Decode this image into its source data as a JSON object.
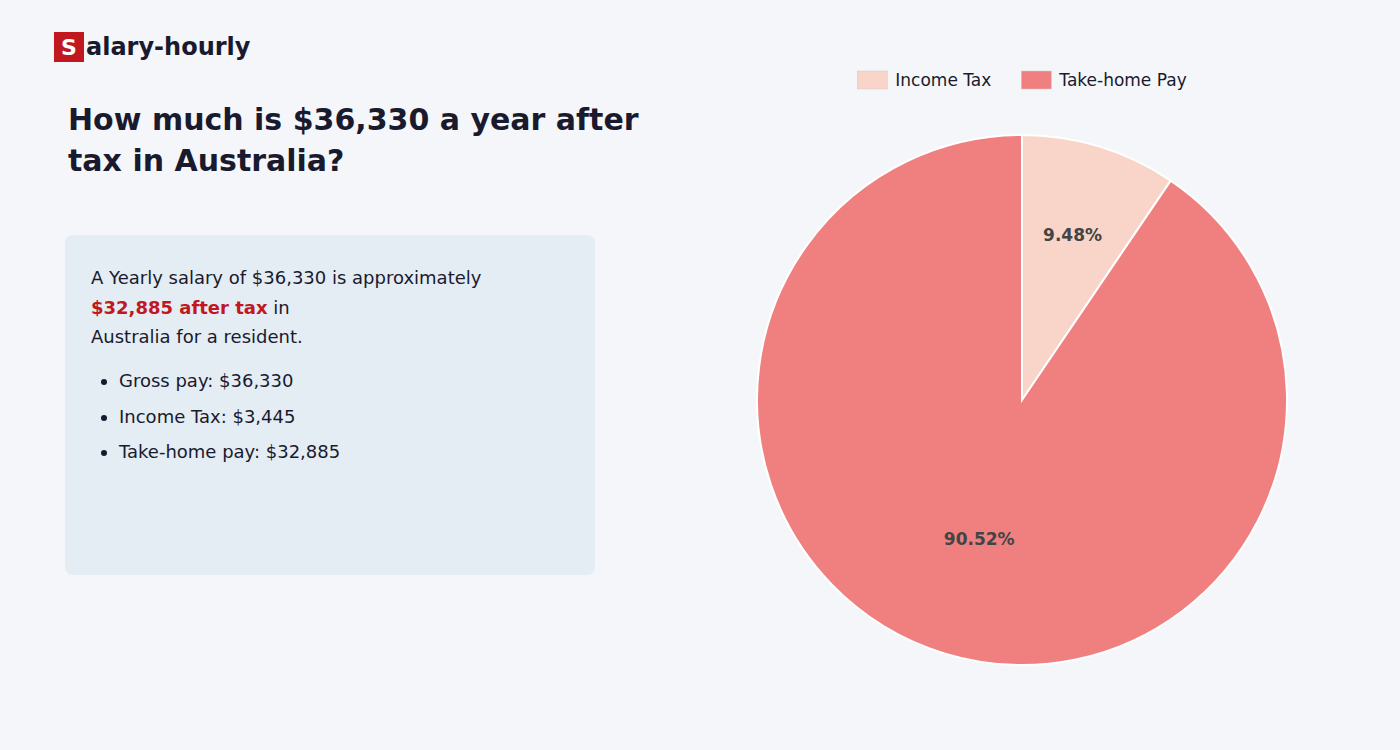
{
  "chart_data": {
    "type": "pie",
    "title": "How much is $36,330 a year after tax in Australia?",
    "categories": [
      "Income Tax",
      "Take-home Pay"
    ],
    "values": [
      9.48,
      90.52
    ],
    "value_labels": [
      "9.48%",
      "90.52%"
    ],
    "colors": [
      "#f8d5c8",
      "#f08080"
    ],
    "data_labels": true,
    "legend": "top"
  },
  "page": {
    "logo_s": "S",
    "logo_rest": "alary-hourly",
    "summary": [
      "A Yearly salary of $36,330 is approximately ",
      "$32,885 after tax",
      " in",
      "Australia for a resident."
    ],
    "bullets": [
      "Gross pay: $36,330",
      "Income Tax: $3,445",
      "Take-home pay: $32,885"
    ]
  }
}
